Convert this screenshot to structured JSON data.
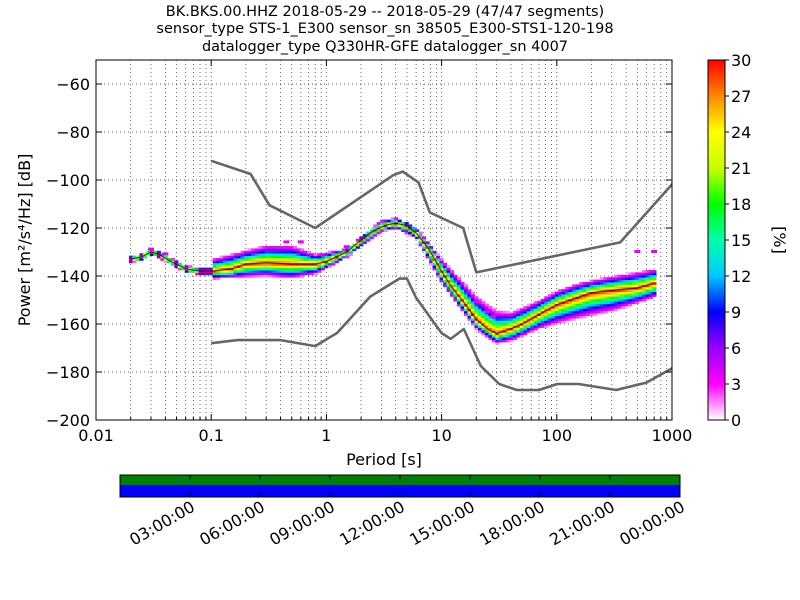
{
  "chart_data": {
    "type": "heatmap",
    "title_lines": [
      "BK.BKS.00.HHZ   2018-05-29 -- 2018-05-29  (47/47 segments)",
      "sensor_type STS-1_E300 sensor_sn 38505_E300-STS1-120-198",
      "datalogger_type Q330HR-GFE datalogger_sn 4007"
    ],
    "xlabel": "Period [s]",
    "ylabel": "Power [m²/s⁴/Hz] [dB]",
    "x_scale": "log",
    "xlim": [
      0.01,
      1000
    ],
    "ylim": [
      -200,
      -50
    ],
    "x_ticks": [
      {
        "v": 0.01,
        "label": "0.01"
      },
      {
        "v": 0.1,
        "label": "0.1"
      },
      {
        "v": 1,
        "label": "1"
      },
      {
        "v": 10,
        "label": "10"
      },
      {
        "v": 100,
        "label": "100"
      },
      {
        "v": 1000,
        "label": "1000"
      }
    ],
    "y_ticks": [
      {
        "v": -60,
        "label": "−60"
      },
      {
        "v": -80,
        "label": "−80"
      },
      {
        "v": -100,
        "label": "−100"
      },
      {
        "v": -120,
        "label": "−120"
      },
      {
        "v": -140,
        "label": "−140"
      },
      {
        "v": -160,
        "label": "−160"
      },
      {
        "v": -180,
        "label": "−180"
      },
      {
        "v": -200,
        "label": "−200"
      }
    ],
    "grid": "dotted",
    "colorbar": {
      "label": "[%]",
      "range": [
        0,
        30
      ],
      "ticks": [
        {
          "v": 0,
          "label": "0"
        },
        {
          "v": 3,
          "label": "3"
        },
        {
          "v": 6,
          "label": "6"
        },
        {
          "v": 9,
          "label": "9"
        },
        {
          "v": 12,
          "label": "12"
        },
        {
          "v": 15,
          "label": "15"
        },
        {
          "v": 18,
          "label": "18"
        },
        {
          "v": 21,
          "label": "21"
        },
        {
          "v": 24,
          "label": "24"
        },
        {
          "v": 27,
          "label": "27"
        },
        {
          "v": 30,
          "label": "30"
        }
      ],
      "colors": [
        "#ffffff",
        "#ff00ff",
        "#9900ff",
        "#0000ff",
        "#00c8ff",
        "#00ffaa",
        "#00ff00",
        "#c8ff00",
        "#ffff00",
        "#ff8800",
        "#ff0000"
      ]
    },
    "high_noise_model": [
      [
        0.1,
        -92
      ],
      [
        0.22,
        -97.5
      ],
      [
        0.32,
        -110.5
      ],
      [
        0.8,
        -120
      ],
      [
        3.8,
        -98
      ],
      [
        4.6,
        -96.5
      ],
      [
        6.3,
        -101
      ],
      [
        7.9,
        -113.5
      ],
      [
        15.4,
        -120
      ],
      [
        20,
        -138.5
      ],
      [
        354.8,
        -126
      ],
      [
        10000,
        -48
      ]
    ],
    "low_noise_model": [
      [
        0.1,
        -168
      ],
      [
        0.17,
        -166.7
      ],
      [
        0.4,
        -166.7
      ],
      [
        0.8,
        -169.2
      ],
      [
        1.24,
        -163.7
      ],
      [
        2.4,
        -148.6
      ],
      [
        4.3,
        -141.1
      ],
      [
        5,
        -141.1
      ],
      [
        6,
        -149
      ],
      [
        10,
        -163.8
      ],
      [
        12,
        -166.2
      ],
      [
        15.6,
        -162.1
      ],
      [
        21.9,
        -177.5
      ],
      [
        31.6,
        -185
      ],
      [
        45,
        -187.5
      ],
      [
        70,
        -187.5
      ],
      [
        101,
        -185
      ],
      [
        154,
        -185
      ],
      [
        328,
        -187.5
      ],
      [
        600,
        -184.4
      ],
      [
        10000,
        -151.9
      ]
    ],
    "psd_mode": [
      [
        0.02,
        -133
      ],
      [
        0.025,
        -132
      ],
      [
        0.03,
        -130
      ],
      [
        0.035,
        -131
      ],
      [
        0.045,
        -134
      ],
      [
        0.06,
        -137
      ],
      [
        0.08,
        -138
      ],
      [
        0.1,
        -138
      ],
      [
        0.15,
        -137
      ],
      [
        0.2,
        -135
      ],
      [
        0.3,
        -134.5
      ],
      [
        0.5,
        -135
      ],
      [
        0.8,
        -135
      ],
      [
        1.0,
        -134
      ],
      [
        1.5,
        -130
      ],
      [
        2.0,
        -125
      ],
      [
        2.5,
        -121.5
      ],
      [
        3.0,
        -119.5
      ],
      [
        3.5,
        -118.5
      ],
      [
        4.0,
        -118
      ],
      [
        5.0,
        -119
      ],
      [
        6.0,
        -122
      ],
      [
        7.0,
        -126
      ],
      [
        8.0,
        -130
      ],
      [
        10,
        -138
      ],
      [
        12,
        -144
      ],
      [
        15,
        -150
      ],
      [
        20,
        -158
      ],
      [
        25,
        -162
      ],
      [
        30,
        -164
      ],
      [
        40,
        -162
      ],
      [
        50,
        -160
      ],
      [
        70,
        -156
      ],
      [
        100,
        -152
      ],
      [
        150,
        -149
      ],
      [
        200,
        -147
      ],
      [
        300,
        -146
      ],
      [
        500,
        -145
      ],
      [
        700,
        -143
      ]
    ],
    "psd_spread_upper": [
      [
        0.1,
        -133
      ],
      [
        0.3,
        -127
      ],
      [
        0.5,
        -127
      ],
      [
        0.8,
        -131
      ],
      [
        1.5,
        -129
      ],
      [
        3,
        -117
      ],
      [
        4,
        -116
      ],
      [
        6,
        -120
      ],
      [
        10,
        -133
      ],
      [
        20,
        -148
      ],
      [
        30,
        -154
      ],
      [
        40,
        -155
      ],
      [
        70,
        -150
      ],
      [
        100,
        -146
      ],
      [
        150,
        -143
      ],
      [
        300,
        -140
      ],
      [
        700,
        -137
      ]
    ],
    "psd_spread_lower": [
      [
        0.1,
        -141
      ],
      [
        0.3,
        -140
      ],
      [
        0.5,
        -141
      ],
      [
        0.8,
        -139
      ],
      [
        1.5,
        -132
      ],
      [
        3,
        -121
      ],
      [
        4,
        -120
      ],
      [
        6,
        -124
      ],
      [
        10,
        -143
      ],
      [
        20,
        -162
      ],
      [
        30,
        -168
      ],
      [
        40,
        -167
      ],
      [
        70,
        -162
      ],
      [
        100,
        -160
      ],
      [
        150,
        -158
      ],
      [
        300,
        -155
      ],
      [
        700,
        -149
      ]
    ],
    "isolated_points": [
      [
        20,
        -151
      ],
      [
        25,
        -155
      ],
      [
        28,
        -157
      ],
      [
        700,
        -130
      ],
      [
        500,
        -130
      ],
      [
        1.5,
        -128
      ],
      [
        0.45,
        -126
      ],
      [
        0.6,
        -126
      ],
      [
        0.03,
        -129
      ],
      [
        0.04,
        -131
      ]
    ],
    "time_axis": {
      "tick_labels": [
        "03:00:00",
        "06:00:00",
        "09:00:00",
        "12:00:00",
        "15:00:00",
        "18:00:00",
        "21:00:00",
        "00:00:00"
      ],
      "coverage_color": "#008000",
      "data_color": "#0000ff"
    }
  }
}
